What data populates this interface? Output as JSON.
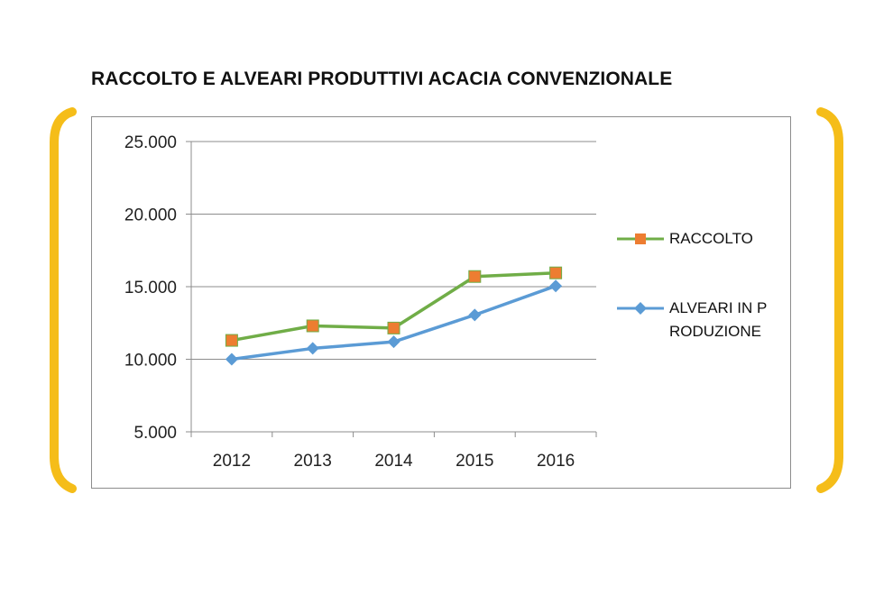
{
  "chart_data": {
    "type": "line",
    "title": "RACCOLTO E ALVEARI PRODUTTIVI ACACIA CONVENZIONALE",
    "xlabel": "",
    "ylabel": "",
    "categories": [
      "2012",
      "2013",
      "2014",
      "2015",
      "2016"
    ],
    "y_ticks": [
      "5.000",
      "10.000",
      "15.000",
      "20.000",
      "25.000"
    ],
    "ylim": [
      5000,
      25000
    ],
    "grid": true,
    "legend_position": "right",
    "series": [
      {
        "name": "RACCOLTO",
        "values": [
          11300,
          12300,
          12150,
          15700,
          15950
        ],
        "line_color": "#70ad47",
        "marker": "square",
        "marker_color": "#ed7d31"
      },
      {
        "name": "ALVEARI IN PRODUZIONE",
        "values": [
          10000,
          10750,
          11200,
          13050,
          15050
        ],
        "line_color": "#5b9bd5",
        "marker": "diamond",
        "marker_color": "#5b9bd5"
      }
    ]
  },
  "decoration": {
    "bracket_color": "#f5bd19"
  }
}
